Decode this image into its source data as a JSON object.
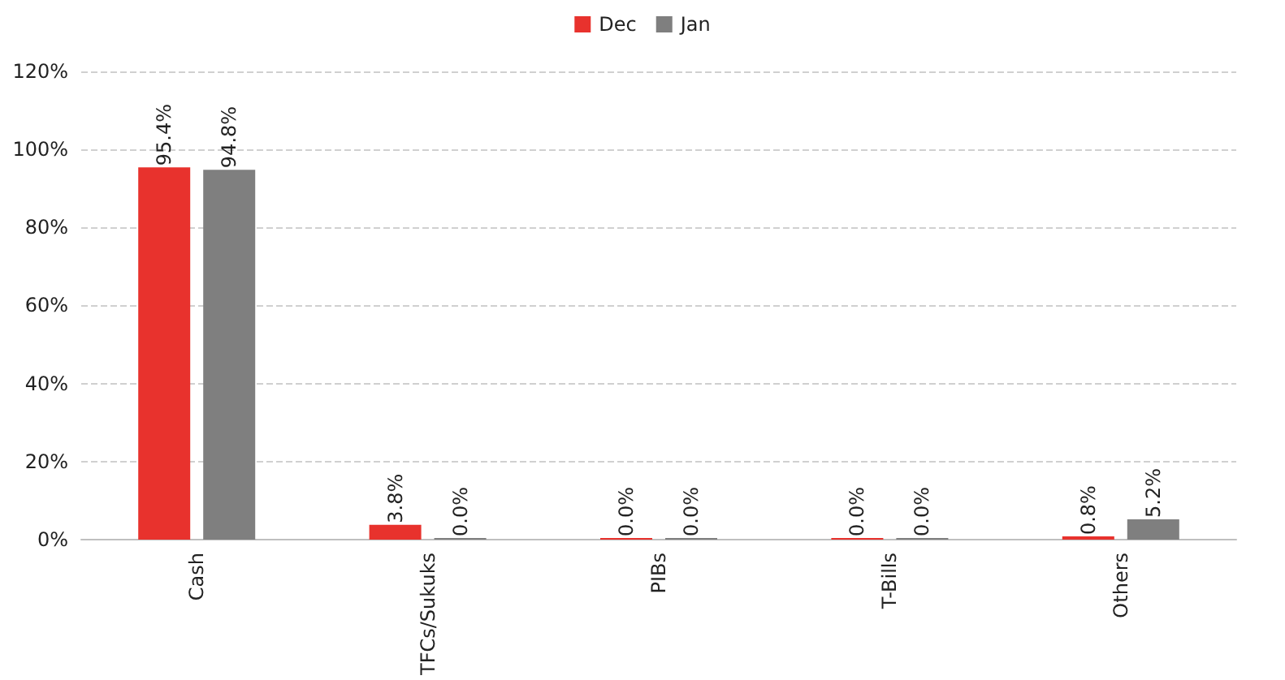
{
  "chart_data": {
    "type": "bar",
    "categories": [
      "Cash",
      "TFCs/Sukuks",
      "PIBs",
      "T-Bills",
      "Others"
    ],
    "series": [
      {
        "name": "Dec",
        "color": "#e8322d",
        "values": [
          95.4,
          3.8,
          0,
          0,
          0.8
        ],
        "value_labels": [
          "95.4%",
          "3.8%",
          "0.0%",
          "0.0%",
          "0.8%"
        ]
      },
      {
        "name": "Jan",
        "color": "#7f7f7f",
        "values": [
          94.8,
          0,
          0,
          0,
          5.2
        ],
        "value_labels": [
          "94.8%",
          "0.0%",
          "0.0%",
          "0.0%",
          "5.2%"
        ]
      }
    ],
    "ylim": [
      0,
      120
    ],
    "yticks": [
      {
        "value": 0,
        "label": "0%"
      },
      {
        "value": 20,
        "label": "20%"
      },
      {
        "value": 40,
        "label": "40%"
      },
      {
        "value": 60,
        "label": "60%"
      },
      {
        "value": 80,
        "label": "80%"
      },
      {
        "value": 100,
        "label": "100%"
      },
      {
        "value": 120,
        "label": "120%"
      }
    ],
    "grid": "y",
    "legend": "top"
  }
}
